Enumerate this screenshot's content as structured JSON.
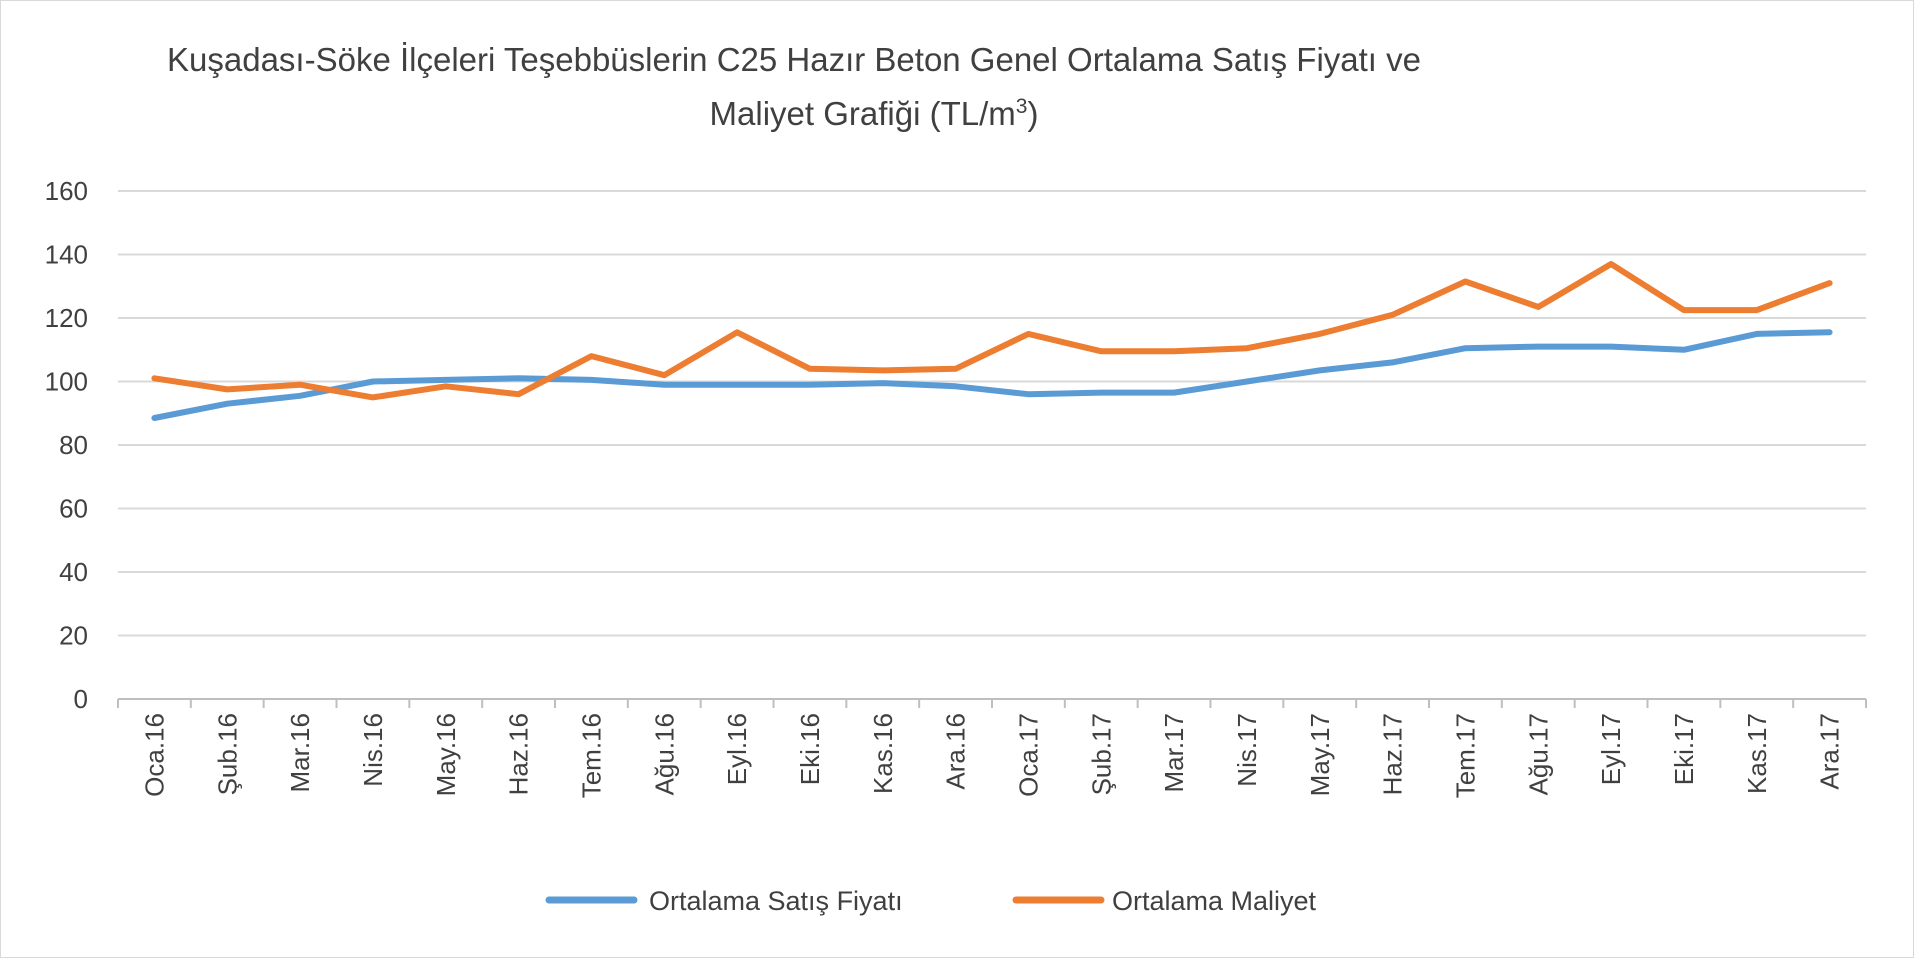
{
  "chart_data": {
    "type": "line",
    "title_line1": "Kuşadası-Söke İlçeleri Teşebbüslerin C25 Hazır Beton Genel Ortalama Satış Fiyatı ve",
    "title_line2_main": "Maliyet Grafiği (TL/m",
    "title_line2_sup": "3",
    "title_line2_end": ")",
    "categories": [
      "Oca.16",
      "Şub.16",
      "Mar.16",
      "Nis.16",
      "May.16",
      "Haz.16",
      "Tem.16",
      "Ağu.16",
      "Eyl.16",
      "Eki.16",
      "Kas.16",
      "Ara.16",
      "Oca.17",
      "Şub.17",
      "Mar.17",
      "Nis.17",
      "May.17",
      "Haz.17",
      "Tem.17",
      "Ağu.17",
      "Eyl.17",
      "Eki.17",
      "Kas.17",
      "Ara.17"
    ],
    "ylim": [
      0,
      160
    ],
    "yticks": [
      0,
      20,
      40,
      60,
      80,
      100,
      120,
      140,
      160
    ],
    "grid": true,
    "legend_position": "bottom",
    "series": [
      {
        "name": "Ortalama Satış Fiyatı",
        "color": "#5b9bd5",
        "values": [
          88.5,
          93,
          95.5,
          100,
          100.5,
          101,
          100.5,
          99,
          99,
          99,
          99.5,
          98.5,
          96,
          96.5,
          96.5,
          100,
          103.5,
          106,
          110.5,
          111,
          111,
          110,
          115,
          115.5
        ]
      },
      {
        "name": "Ortalama Maliyet",
        "color": "#ed7d31",
        "values": [
          101,
          97.5,
          99,
          95,
          98.5,
          96,
          108,
          102,
          115.5,
          104,
          103.5,
          104,
          115,
          109.5,
          109.5,
          110.5,
          115,
          121,
          131.5,
          123.5,
          137,
          122.5,
          122.5,
          131
        ]
      }
    ]
  }
}
